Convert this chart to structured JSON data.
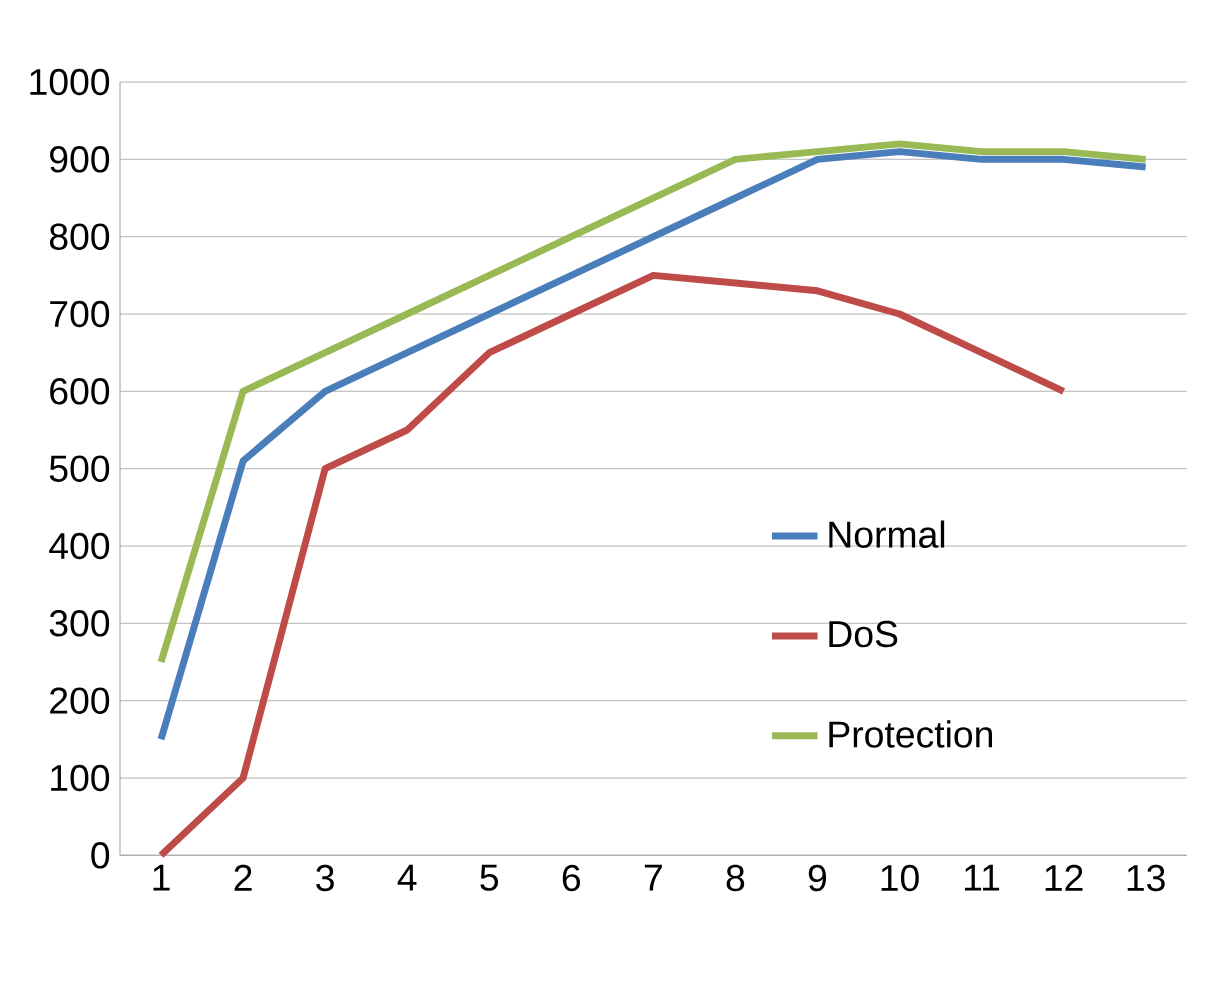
{
  "chart_data": {
    "type": "line",
    "categories": [
      "1",
      "2",
      "3",
      "4",
      "5",
      "6",
      "7",
      "8",
      "9",
      "10",
      "11",
      "12",
      "13"
    ],
    "series": [
      {
        "name": "Normal",
        "color": "#4a7ebb",
        "values": [
          150,
          510,
          600,
          650,
          700,
          750,
          800,
          850,
          900,
          910,
          900,
          900,
          890
        ]
      },
      {
        "name": "DoS",
        "color": "#be4b48",
        "values": [
          0,
          100,
          500,
          550,
          650,
          700,
          750,
          740,
          730,
          700,
          650,
          600,
          null
        ]
      },
      {
        "name": "Protection",
        "color": "#98b954",
        "values": [
          250,
          600,
          650,
          700,
          750,
          800,
          850,
          900,
          910,
          920,
          910,
          910,
          900
        ]
      }
    ],
    "ylim": [
      0,
      1000
    ],
    "yticks": [
      0,
      100,
      200,
      300,
      400,
      500,
      600,
      700,
      800,
      900,
      1000
    ],
    "grid": "y",
    "legend": "right",
    "marker": "none",
    "line_style": "solid"
  }
}
